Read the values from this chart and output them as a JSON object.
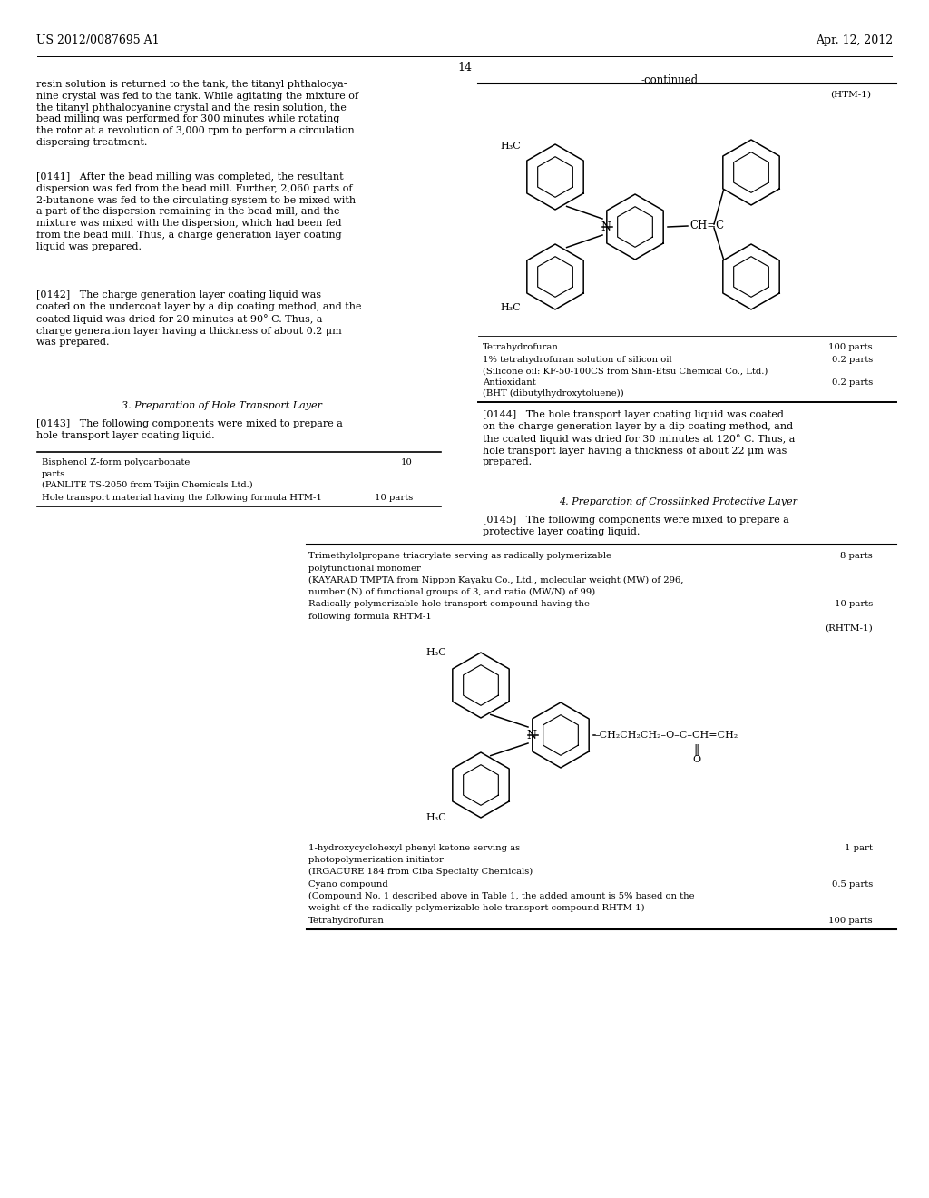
{
  "background_color": "#ffffff",
  "page_header_left": "US 2012/0087695 A1",
  "page_header_right": "Apr. 12, 2012",
  "page_number": "14"
}
